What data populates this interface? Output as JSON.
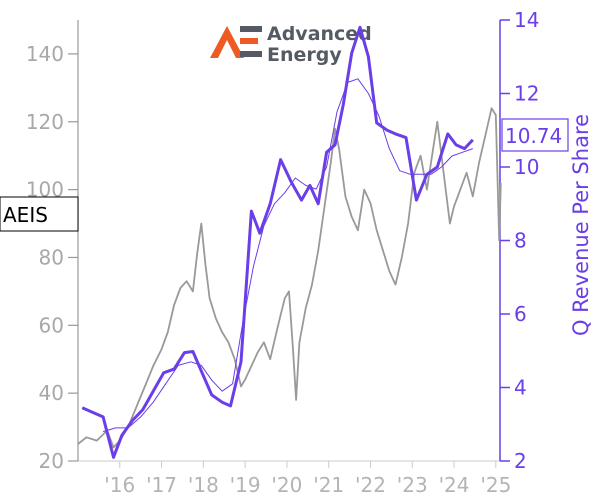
{
  "chart_data": {
    "type": "line",
    "ticker": "AEIS",
    "ylabel_right": "Q Revenue Per Share",
    "last_value_label": "10.74",
    "logo": {
      "line1": "Advanced",
      "line2": "Energy"
    },
    "x_tick_labels": [
      "'16",
      "'17",
      "'18",
      "'19",
      "'20",
      "'21",
      "'22",
      "'23",
      "'24",
      "'25"
    ],
    "x_range": [
      2015.0,
      2025.1
    ],
    "y_left": {
      "range": [
        20,
        150
      ],
      "ticks": [
        20,
        40,
        60,
        80,
        100,
        120,
        140
      ]
    },
    "y_right": {
      "range": [
        2,
        14
      ],
      "ticks": [
        2,
        4,
        6,
        8,
        10,
        12,
        14
      ]
    },
    "colors": {
      "price": "#999999",
      "revenue": "#6a3ee8",
      "logo_mark": "#ee5a24",
      "logo_text": "#555b64"
    },
    "price_series": {
      "name": "",
      "axis": "left",
      "points": [
        [
          2015.0,
          25
        ],
        [
          2015.2,
          27
        ],
        [
          2015.45,
          26
        ],
        [
          2015.7,
          29
        ],
        [
          2015.85,
          24
        ],
        [
          2016.0,
          26
        ],
        [
          2016.2,
          30
        ],
        [
          2016.4,
          36
        ],
        [
          2016.6,
          42
        ],
        [
          2016.8,
          48
        ],
        [
          2017.0,
          53
        ],
        [
          2017.15,
          58
        ],
        [
          2017.3,
          66
        ],
        [
          2017.45,
          71
        ],
        [
          2017.6,
          73
        ],
        [
          2017.75,
          70
        ],
        [
          2017.85,
          81
        ],
        [
          2017.95,
          90
        ],
        [
          2018.05,
          78
        ],
        [
          2018.15,
          68
        ],
        [
          2018.3,
          62
        ],
        [
          2018.45,
          58
        ],
        [
          2018.6,
          55
        ],
        [
          2018.75,
          50
        ],
        [
          2018.9,
          42
        ],
        [
          2019.0,
          44
        ],
        [
          2019.15,
          48
        ],
        [
          2019.3,
          52
        ],
        [
          2019.45,
          55
        ],
        [
          2019.6,
          50
        ],
        [
          2019.75,
          58
        ],
        [
          2019.85,
          63
        ],
        [
          2019.95,
          68
        ],
        [
          2020.05,
          70
        ],
        [
          2020.15,
          52
        ],
        [
          2020.22,
          38
        ],
        [
          2020.3,
          55
        ],
        [
          2020.45,
          65
        ],
        [
          2020.6,
          72
        ],
        [
          2020.75,
          82
        ],
        [
          2020.9,
          95
        ],
        [
          2021.05,
          108
        ],
        [
          2021.15,
          118
        ],
        [
          2021.25,
          112
        ],
        [
          2021.4,
          98
        ],
        [
          2021.55,
          92
        ],
        [
          2021.7,
          88
        ],
        [
          2021.85,
          100
        ],
        [
          2022.0,
          96
        ],
        [
          2022.15,
          88
        ],
        [
          2022.3,
          82
        ],
        [
          2022.45,
          76
        ],
        [
          2022.6,
          72
        ],
        [
          2022.75,
          80
        ],
        [
          2022.9,
          90
        ],
        [
          2023.05,
          105
        ],
        [
          2023.2,
          110
        ],
        [
          2023.35,
          100
        ],
        [
          2023.5,
          112
        ],
        [
          2023.6,
          120
        ],
        [
          2023.75,
          105
        ],
        [
          2023.9,
          90
        ],
        [
          2024.0,
          95
        ],
        [
          2024.15,
          100
        ],
        [
          2024.3,
          105
        ],
        [
          2024.45,
          98
        ],
        [
          2024.6,
          108
        ],
        [
          2024.75,
          116
        ],
        [
          2024.9,
          124
        ],
        [
          2025.0,
          122
        ],
        [
          2025.08,
          85
        ],
        [
          2025.12,
          102
        ]
      ]
    },
    "revenue_series": {
      "name": "",
      "axis": "right",
      "points": [
        [
          2015.1,
          3.45
        ],
        [
          2015.4,
          3.3
        ],
        [
          2015.6,
          3.2
        ],
        [
          2015.85,
          2.1
        ],
        [
          2016.05,
          2.7
        ],
        [
          2016.3,
          3.1
        ],
        [
          2016.55,
          3.4
        ],
        [
          2016.8,
          3.9
        ],
        [
          2017.05,
          4.4
        ],
        [
          2017.3,
          4.5
        ],
        [
          2017.55,
          4.95
        ],
        [
          2017.75,
          4.98
        ],
        [
          2017.95,
          4.45
        ],
        [
          2018.2,
          3.8
        ],
        [
          2018.45,
          3.6
        ],
        [
          2018.65,
          3.5
        ],
        [
          2018.9,
          4.7
        ],
        [
          2019.15,
          8.8
        ],
        [
          2019.35,
          8.2
        ],
        [
          2019.6,
          9.0
        ],
        [
          2019.85,
          10.2
        ],
        [
          2020.1,
          9.6
        ],
        [
          2020.35,
          9.1
        ],
        [
          2020.55,
          9.5
        ],
        [
          2020.75,
          9.0
        ],
        [
          2020.95,
          10.4
        ],
        [
          2021.15,
          10.6
        ],
        [
          2021.35,
          11.7
        ],
        [
          2021.55,
          13.1
        ],
        [
          2021.75,
          13.8
        ],
        [
          2021.95,
          13.0
        ],
        [
          2022.15,
          11.2
        ],
        [
          2022.4,
          11.0
        ],
        [
          2022.6,
          10.9
        ],
        [
          2022.85,
          10.8
        ],
        [
          2023.1,
          9.1
        ],
        [
          2023.35,
          9.8
        ],
        [
          2023.6,
          10.0
        ],
        [
          2023.85,
          10.9
        ],
        [
          2024.05,
          10.6
        ],
        [
          2024.25,
          10.5
        ],
        [
          2024.45,
          10.74
        ]
      ]
    },
    "revenue_ma": {
      "name": "",
      "axis": "right",
      "points": [
        [
          2015.6,
          2.8
        ],
        [
          2015.9,
          2.9
        ],
        [
          2016.2,
          2.9
        ],
        [
          2016.5,
          3.2
        ],
        [
          2016.8,
          3.6
        ],
        [
          2017.1,
          4.1
        ],
        [
          2017.4,
          4.6
        ],
        [
          2017.7,
          4.7
        ],
        [
          2017.95,
          4.6
        ],
        [
          2018.2,
          4.2
        ],
        [
          2018.45,
          3.9
        ],
        [
          2018.7,
          4.1
        ],
        [
          2018.95,
          5.8
        ],
        [
          2019.2,
          7.3
        ],
        [
          2019.45,
          8.4
        ],
        [
          2019.7,
          9.0
        ],
        [
          2019.95,
          9.3
        ],
        [
          2020.2,
          9.7
        ],
        [
          2020.45,
          9.5
        ],
        [
          2020.7,
          9.4
        ],
        [
          2020.95,
          10.0
        ],
        [
          2021.2,
          11.5
        ],
        [
          2021.45,
          12.3
        ],
        [
          2021.7,
          12.4
        ],
        [
          2021.95,
          12.0
        ],
        [
          2022.2,
          11.4
        ],
        [
          2022.45,
          10.5
        ],
        [
          2022.7,
          9.9
        ],
        [
          2022.95,
          9.8
        ],
        [
          2023.2,
          9.8
        ],
        [
          2023.45,
          9.8
        ],
        [
          2023.7,
          10.0
        ],
        [
          2023.95,
          10.3
        ],
        [
          2024.2,
          10.4
        ],
        [
          2024.45,
          10.5
        ]
      ]
    }
  }
}
